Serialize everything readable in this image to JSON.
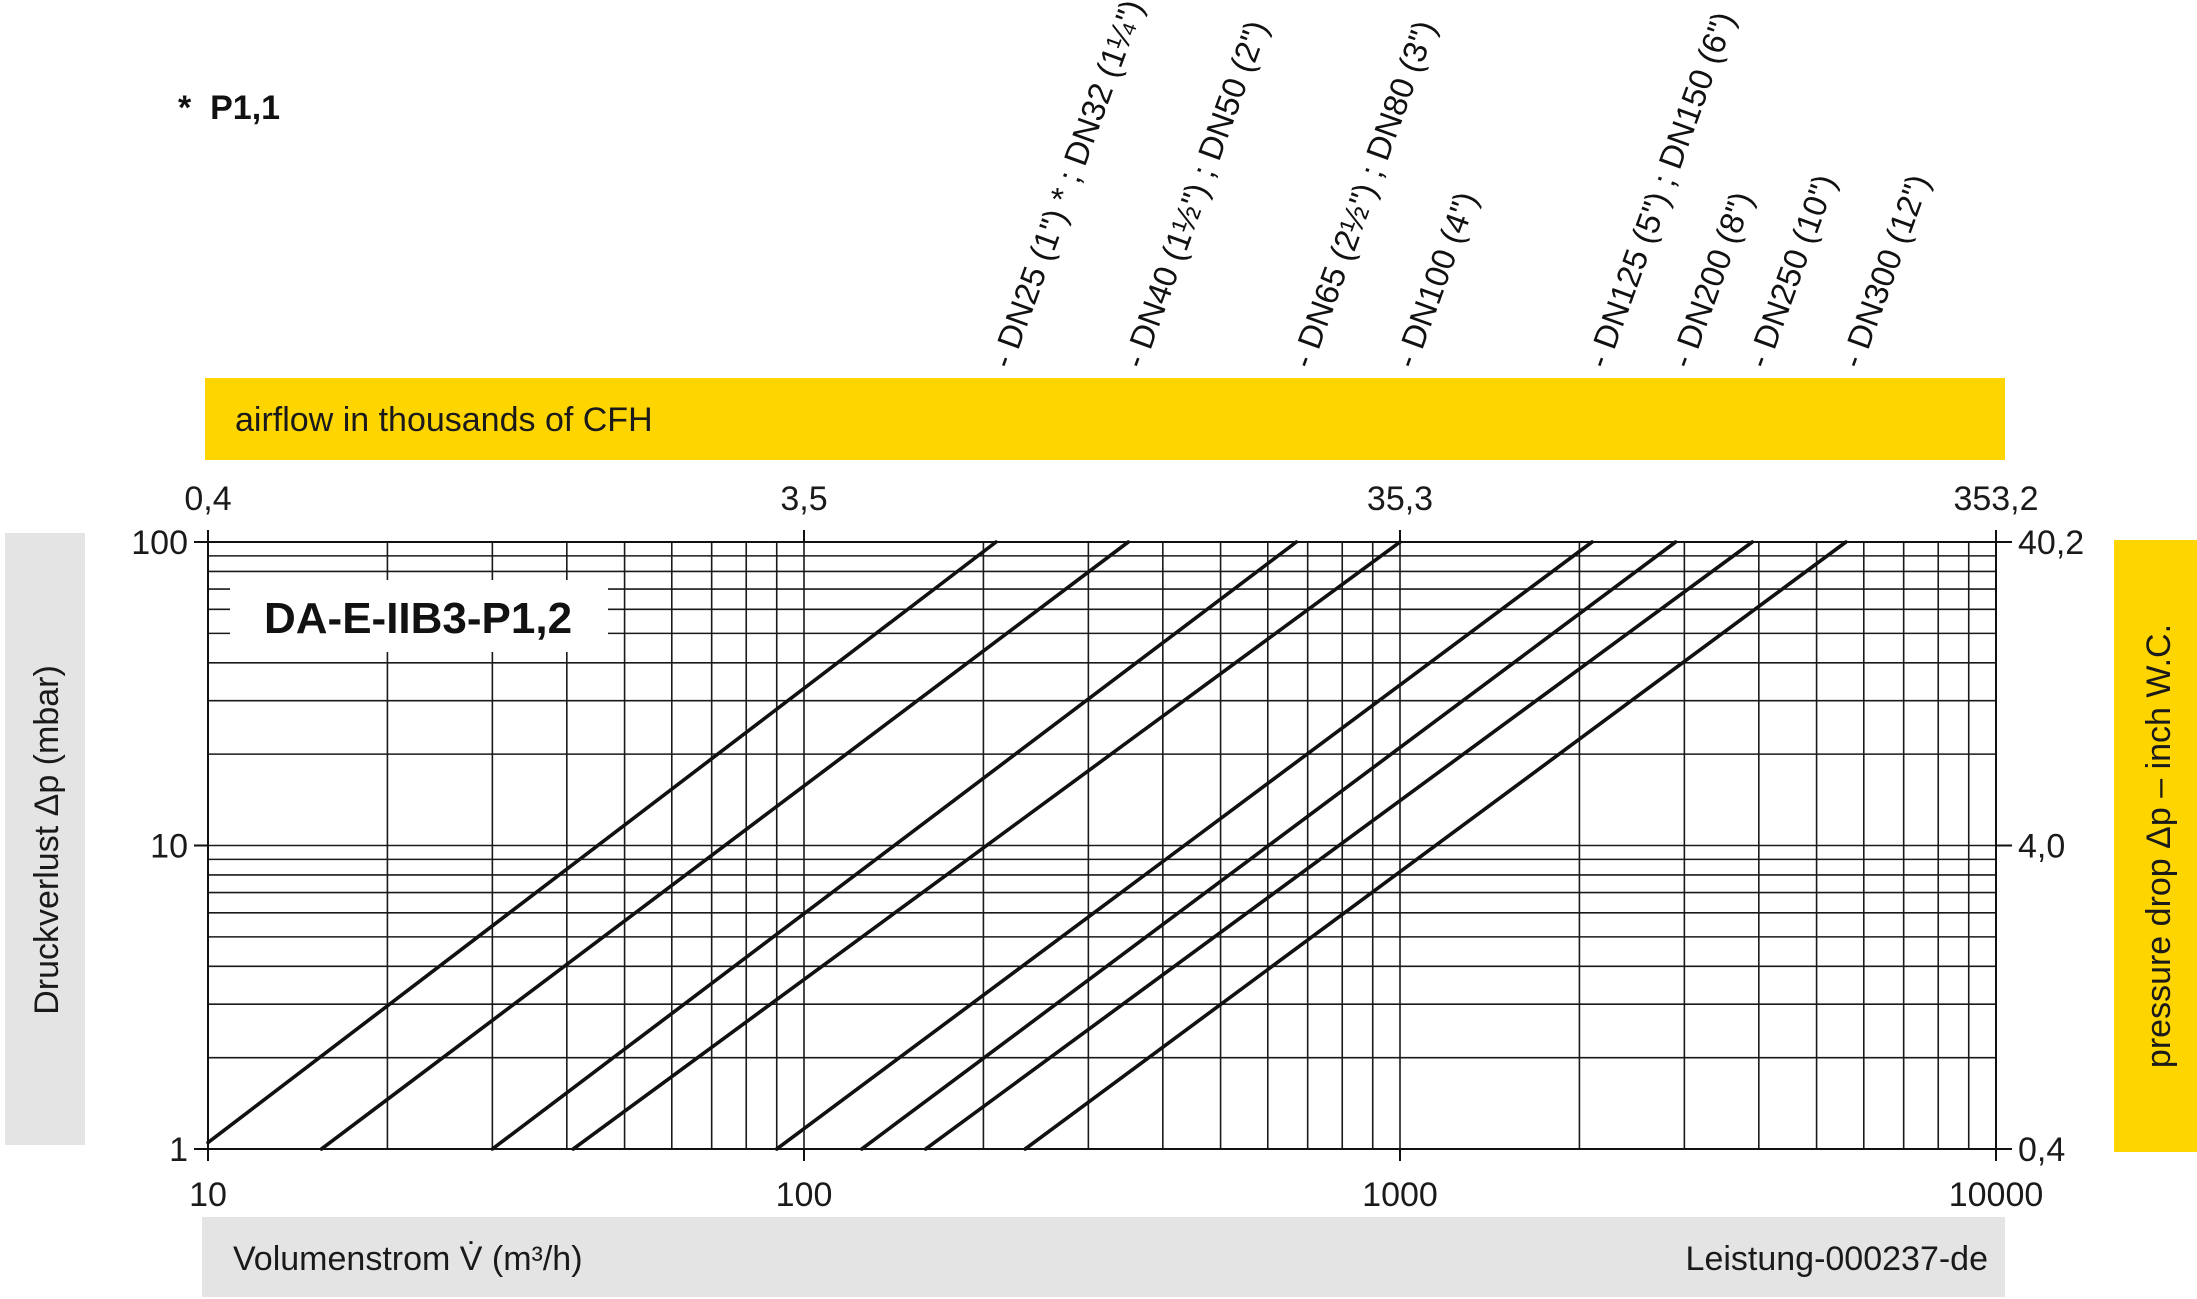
{
  "colors": {
    "yellow": "#FFD500",
    "gray": "#E4E4E4",
    "line": "#111111",
    "grid": "#1a1a1a"
  },
  "chart_data": {
    "type": "line",
    "title": "DA-E-IIB3-P1,2",
    "footnote": "*  P1,1",
    "x_scale": "log",
    "y_scale": "log",
    "xlabel": "Volumenstrom V̇ (m³/h)",
    "xlabel_right": "Leistung-000237-de",
    "ylabel": "Druckverlust Δp (mbar)",
    "ylabel_right": "pressure drop Δp – inch W.C.",
    "xlabel_top": "airflow in thousands of CFH",
    "xlim": [
      10,
      10000
    ],
    "ylim": [
      1,
      100
    ],
    "x_ticks": [
      "10",
      "100",
      "1000",
      "10000"
    ],
    "y_ticks": [
      "1",
      "10",
      "100"
    ],
    "x_ticks_top": [
      "0,4",
      "3,5",
      "35,3",
      "353,2"
    ],
    "y_ticks_right": [
      "0,4",
      "4,0",
      "40,2"
    ],
    "grid": true,
    "series": [
      {
        "name": "- DN25 (1\") * ; DN32 (1¼\") *",
        "points": [
          [
            10,
            1.05
          ],
          [
            210,
            100
          ]
        ]
      },
      {
        "name": "- DN40 (1½\") ; DN50 (2\")",
        "points": [
          [
            15.5,
            1
          ],
          [
            350,
            100
          ]
        ]
      },
      {
        "name": "- DN65 (2½\") ; DN80 (3\")",
        "points": [
          [
            30,
            1
          ],
          [
            670,
            100
          ]
        ]
      },
      {
        "name": "- DN100 (4\")",
        "points": [
          [
            41,
            1
          ],
          [
            1000,
            100
          ]
        ]
      },
      {
        "name": "- DN125 (5\") ; DN150 (6\")",
        "points": [
          [
            90,
            1
          ],
          [
            2100,
            100
          ]
        ]
      },
      {
        "name": "- DN200 (8\")",
        "points": [
          [
            125,
            1
          ],
          [
            2900,
            100
          ]
        ]
      },
      {
        "name": "- DN250 (10\")",
        "points": [
          [
            160,
            1
          ],
          [
            3900,
            100
          ]
        ]
      },
      {
        "name": "- DN300 (12\")",
        "points": [
          [
            235,
            1
          ],
          [
            5600,
            100
          ]
        ]
      }
    ]
  }
}
